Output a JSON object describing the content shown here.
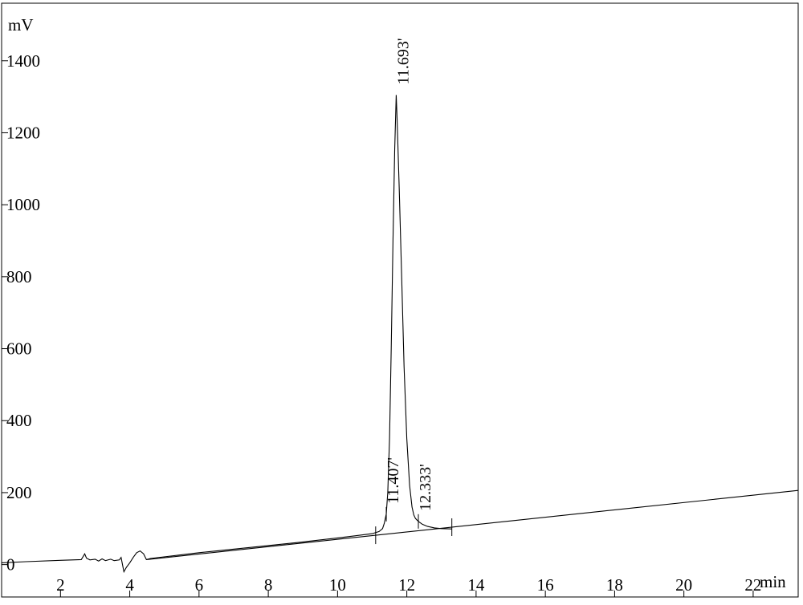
{
  "chart_data": {
    "type": "line",
    "title": "",
    "xlabel": "min",
    "ylabel": "mV",
    "xlim": [
      0.3,
      23.3
    ],
    "ylim": [
      -90,
      1560
    ],
    "grid": false,
    "x_ticks": [
      2,
      4,
      6,
      8,
      10,
      12,
      14,
      16,
      18,
      20,
      22
    ],
    "x_tick_labels": [
      "2",
      "4",
      "6",
      "8",
      "10",
      "12",
      "14",
      "16",
      "18",
      "20",
      "22"
    ],
    "y_ticks": [
      0,
      200,
      400,
      600,
      800,
      1000,
      1200,
      1400
    ],
    "y_tick_labels": [
      "0",
      "200",
      "400",
      "600",
      "800",
      "1000",
      "1200",
      "1400"
    ],
    "series": [
      {
        "points": [
          [
            0.3,
            5
          ],
          [
            1.0,
            8
          ],
          [
            2.0,
            12
          ],
          [
            2.6,
            14
          ],
          [
            2.65,
            22
          ],
          [
            2.7,
            30
          ],
          [
            2.75,
            18
          ],
          [
            2.85,
            13
          ],
          [
            3.0,
            15
          ],
          [
            3.1,
            10
          ],
          [
            3.2,
            16
          ],
          [
            3.3,
            11
          ],
          [
            3.45,
            15
          ],
          [
            3.55,
            11
          ],
          [
            3.7,
            13
          ],
          [
            3.75,
            20
          ],
          [
            3.78,
            5
          ],
          [
            3.83,
            -20
          ],
          [
            3.9,
            -8
          ],
          [
            4.0,
            5
          ],
          [
            4.1,
            20
          ],
          [
            4.2,
            33
          ],
          [
            4.3,
            38
          ],
          [
            4.4,
            30
          ],
          [
            4.48,
            14
          ],
          [
            4.6,
            17
          ],
          [
            6.0,
            33
          ],
          [
            8.0,
            53
          ],
          [
            9.0,
            63
          ],
          [
            10.0,
            74
          ],
          [
            10.5,
            80
          ],
          [
            11.0,
            86
          ],
          [
            11.2,
            92
          ],
          [
            11.3,
            100
          ],
          [
            11.35,
            115
          ],
          [
            11.407,
            140
          ],
          [
            11.45,
            200
          ],
          [
            11.5,
            350
          ],
          [
            11.55,
            600
          ],
          [
            11.6,
            900
          ],
          [
            11.65,
            1150
          ],
          [
            11.693,
            1305
          ],
          [
            11.72,
            1240
          ],
          [
            11.78,
            1050
          ],
          [
            11.85,
            800
          ],
          [
            11.92,
            550
          ],
          [
            12.0,
            350
          ],
          [
            12.08,
            220
          ],
          [
            12.15,
            160
          ],
          [
            12.2,
            138
          ],
          [
            12.25,
            128
          ],
          [
            12.333,
            120
          ],
          [
            12.45,
            112
          ],
          [
            12.6,
            106
          ],
          [
            12.8,
            102
          ],
          [
            13.0,
            100
          ],
          [
            13.3,
            99
          ]
        ]
      },
      {
        "points": [
          [
            4.48,
            14
          ],
          [
            23.3,
            206
          ]
        ]
      }
    ],
    "peaks": [
      {
        "x": 11.693,
        "y": 1305,
        "label": "11.693'"
      },
      {
        "x": 11.407,
        "y": 140,
        "label": "11.407'"
      },
      {
        "x": 12.333,
        "y": 120,
        "label": "12.333'"
      }
    ],
    "integration_markers": [
      11.1,
      13.3
    ]
  }
}
